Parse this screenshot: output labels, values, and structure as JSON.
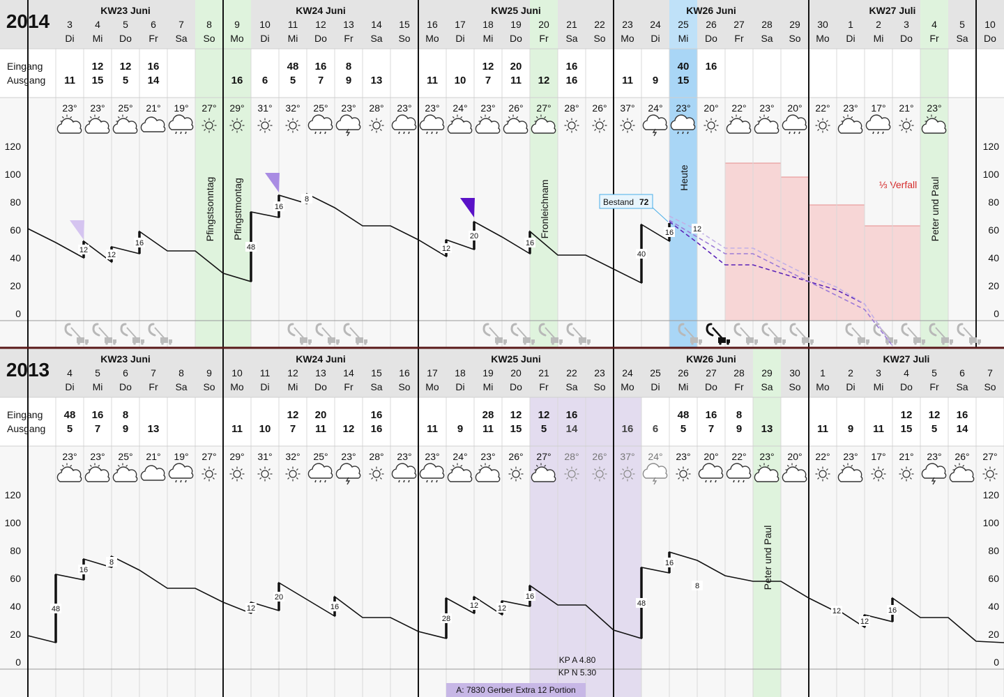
{
  "colors": {
    "header_bg": "#e4e4e4",
    "holiday": "#dff3dd",
    "today": "#a9d6f6",
    "promo": "#e3dcef",
    "verfall": "#f6cdcd",
    "line": "#111111",
    "forecast": "#5a22b8",
    "divider": "#5a1a1a"
  },
  "panels": [
    {
      "id": "y2014",
      "year": "2014",
      "labels": {
        "in": "Eingang",
        "out": "Ausgang"
      },
      "weeks": [
        {
          "label": "KW23 Juni",
          "from": 0,
          "to": 7
        },
        {
          "label": "KW24 Juni",
          "from": 7,
          "to": 14
        },
        {
          "label": "KW25 Juni",
          "from": 14,
          "to": 21
        },
        {
          "label": "KW26 Juni",
          "from": 21,
          "to": 28
        },
        {
          "label": "KW27 Juli",
          "from": 28,
          "to": 34
        }
      ],
      "days": [
        {
          "n": "3",
          "d": "Di",
          "in": "",
          "out": "11",
          "t": "23°",
          "w": "pcloud"
        },
        {
          "n": "4",
          "d": "Mi",
          "in": "12",
          "out": "15",
          "t": "23°",
          "w": "pcloud"
        },
        {
          "n": "5",
          "d": "Do",
          "in": "12",
          "out": "5",
          "t": "25°",
          "w": "pcloud"
        },
        {
          "n": "6",
          "d": "Fr",
          "in": "16",
          "out": "14",
          "t": "21°",
          "w": "cloud"
        },
        {
          "n": "7",
          "d": "Sa",
          "in": "",
          "out": "",
          "t": "19°",
          "w": "rain"
        },
        {
          "n": "8",
          "d": "So",
          "in": "",
          "out": "",
          "t": "27°",
          "w": "sun"
        },
        {
          "n": "9",
          "d": "Mo",
          "in": "",
          "out": "16",
          "t": "29°",
          "w": "sun"
        },
        {
          "n": "10",
          "d": "Di",
          "in": "",
          "out": "6",
          "t": "31°",
          "w": "sun"
        },
        {
          "n": "11",
          "d": "Mi",
          "in": "48",
          "out": "5",
          "t": "32°",
          "w": "sun"
        },
        {
          "n": "12",
          "d": "Do",
          "in": "16",
          "out": "7",
          "t": "25°",
          "w": "rain"
        },
        {
          "n": "13",
          "d": "Fr",
          "in": "8",
          "out": "9",
          "t": "23°",
          "w": "storm"
        },
        {
          "n": "14",
          "d": "Sa",
          "in": "",
          "out": "13",
          "t": "28°",
          "w": "sun"
        },
        {
          "n": "15",
          "d": "So",
          "in": "",
          "out": "",
          "t": "23°",
          "w": "rain"
        },
        {
          "n": "16",
          "d": "Mo",
          "in": "",
          "out": "11",
          "t": "23°",
          "w": "rain"
        },
        {
          "n": "17",
          "d": "Di",
          "in": "",
          "out": "10",
          "t": "24°",
          "w": "pcloud"
        },
        {
          "n": "18",
          "d": "Mi",
          "in": "12",
          "out": "7",
          "t": "23°",
          "w": "pcloud"
        },
        {
          "n": "19",
          "d": "Do",
          "in": "20",
          "out": "11",
          "t": "26°",
          "w": "pcloud"
        },
        {
          "n": "20",
          "d": "Fr",
          "in": "",
          "out": "12",
          "t": "27°",
          "w": "pcloud"
        },
        {
          "n": "21",
          "d": "Sa",
          "in": "16",
          "out": "16",
          "t": "28°",
          "w": "sun"
        },
        {
          "n": "22",
          "d": "So",
          "in": "",
          "out": "",
          "t": "26°",
          "w": "sun"
        },
        {
          "n": "23",
          "d": "Mo",
          "in": "",
          "out": "11",
          "t": "37°",
          "w": "sun"
        },
        {
          "n": "24",
          "d": "Di",
          "in": "",
          "out": "9",
          "t": "24°",
          "w": "storm"
        },
        {
          "n": "25",
          "d": "Mi",
          "in": "40",
          "out": "15",
          "t": "23°",
          "w": "rain"
        },
        {
          "n": "26",
          "d": "Do",
          "in": "16",
          "out": "",
          "t": "20°",
          "w": "sun"
        },
        {
          "n": "27",
          "d": "Fr",
          "in": "",
          "out": "",
          "t": "22°",
          "w": "pcloud"
        },
        {
          "n": "28",
          "d": "Sa",
          "in": "",
          "out": "",
          "t": "23°",
          "w": "pcloud"
        },
        {
          "n": "29",
          "d": "So",
          "in": "",
          "out": "",
          "t": "20°",
          "w": "rain"
        },
        {
          "n": "30",
          "d": "Mo",
          "in": "",
          "out": "",
          "t": "22°",
          "w": "sun"
        },
        {
          "n": "1",
          "d": "Di",
          "in": "",
          "out": "",
          "t": "23°",
          "w": "pcloud"
        },
        {
          "n": "2",
          "d": "Mi",
          "in": "",
          "out": "",
          "t": "17°",
          "w": "rain"
        },
        {
          "n": "3",
          "d": "Do",
          "in": "",
          "out": "",
          "t": "21°",
          "w": "sun"
        },
        {
          "n": "4",
          "d": "Fr",
          "in": "",
          "out": "",
          "t": "23°",
          "w": "pcloud"
        },
        {
          "n": "5",
          "d": "Sa",
          "in": "",
          "out": "",
          "t": "",
          "w": ""
        },
        {
          "n": "10",
          "d": "Do",
          "in": "",
          "out": "",
          "t": "",
          "w": ""
        }
      ],
      "holidays": [
        {
          "col": 6,
          "label": "Pfingstsonntag"
        },
        {
          "col": 7,
          "label": "Pfingstmontag"
        },
        {
          "col": 18,
          "label": "Fronleichnam"
        },
        {
          "col": 32,
          "label": "Peter und Paul"
        }
      ],
      "today": {
        "col": 23,
        "label": "Heute"
      },
      "bestand": {
        "label": "Bestand",
        "value": "72"
      },
      "verfall_label": "⅓ Verfall",
      "chart_data": {
        "type": "line",
        "ylim": [
          0,
          120
        ],
        "yticks": [
          0,
          20,
          40,
          60,
          80,
          100,
          120
        ],
        "x": [
          0,
          1,
          2,
          2,
          3,
          3,
          4,
          4,
          5,
          6,
          7,
          8,
          8,
          9,
          9,
          10,
          10,
          11,
          12,
          13,
          14,
          15,
          15,
          16,
          16,
          17,
          18,
          18,
          19,
          20,
          21,
          22,
          22,
          23,
          23
        ],
        "values": [
          66,
          56,
          45,
          57,
          42,
          53,
          48,
          64,
          50,
          50,
          34,
          28,
          78,
          74,
          90,
          84,
          91,
          81,
          68,
          68,
          58,
          46,
          58,
          51,
          71,
          60,
          48,
          64,
          47,
          47,
          37,
          27,
          69,
          57,
          70
        ],
        "inflow_labels": [
          {
            "x": 2,
            "label": "12"
          },
          {
            "x": 3,
            "label": "12"
          },
          {
            "x": 4,
            "label": "16"
          },
          {
            "x": 8,
            "label": "48"
          },
          {
            "x": 9,
            "label": "16"
          },
          {
            "x": 10,
            "label": "8"
          },
          {
            "x": 15,
            "label": "12"
          },
          {
            "x": 16,
            "label": "20"
          },
          {
            "x": 18,
            "label": "16"
          },
          {
            "x": 22,
            "label": "40"
          },
          {
            "x": 23,
            "label": "16"
          },
          {
            "x": 24,
            "label": "12"
          }
        ],
        "forecast": [
          {
            "x": [
              23,
              24,
              25,
              26,
              27,
              28,
              29,
              30
            ],
            "values": [
              71,
              56,
              40,
              40,
              34,
              28,
              22,
              12
            ],
            "color": "#5a22b8"
          },
          {
            "x": [
              23,
              24,
              25,
              26,
              27,
              28,
              29,
              30,
              31
            ],
            "values": [
              72,
              60,
              48,
              48,
              38,
              28,
              18,
              8,
              -18
            ],
            "color": "#9c7ad6"
          },
          {
            "x": [
              23,
              24,
              25,
              26,
              27,
              28,
              29,
              30,
              31
            ],
            "values": [
              75,
              65,
              52,
              52,
              42,
              32,
              24,
              12,
              -18
            ],
            "color": "#c2b0e6"
          }
        ],
        "verfall_steps": [
          {
            "from": 25,
            "to": 27,
            "value": 113
          },
          {
            "from": 27,
            "to": 28,
            "value": 103
          },
          {
            "from": 28,
            "to": 30,
            "value": 83
          },
          {
            "from": 30,
            "to": 32,
            "value": 68
          }
        ],
        "markers": [
          {
            "x": 2,
            "value": 57,
            "color": "#d5c4f0"
          },
          {
            "x": 9,
            "value": 91,
            "color": "#a98ce3"
          },
          {
            "x": 16,
            "value": 73,
            "color": "#5a12c7"
          }
        ]
      }
    },
    {
      "id": "y2013",
      "year": "2013",
      "labels": {
        "in": "Eingang",
        "out": "Ausgang"
      },
      "weeks": [
        {
          "label": "KW23 Juni",
          "from": 0,
          "to": 7
        },
        {
          "label": "KW24 Juni",
          "from": 7,
          "to": 14
        },
        {
          "label": "KW25 Juni",
          "from": 14,
          "to": 21
        },
        {
          "label": "KW26 Juni",
          "from": 21,
          "to": 28
        },
        {
          "label": "KW27 Juli",
          "from": 28,
          "to": 35
        }
      ],
      "days": [
        {
          "n": "4",
          "d": "Di",
          "in": "48",
          "out": "5",
          "t": "23°",
          "w": "pcloud"
        },
        {
          "n": "5",
          "d": "Mi",
          "in": "16",
          "out": "7",
          "t": "23°",
          "w": "pcloud"
        },
        {
          "n": "6",
          "d": "Do",
          "in": "8",
          "out": "9",
          "t": "25°",
          "w": "pcloud"
        },
        {
          "n": "7",
          "d": "Fr",
          "in": "",
          "out": "13",
          "t": "21°",
          "w": "cloud"
        },
        {
          "n": "8",
          "d": "Sa",
          "in": "",
          "out": "",
          "t": "19°",
          "w": "rain"
        },
        {
          "n": "9",
          "d": "So",
          "in": "",
          "out": "",
          "t": "27°",
          "w": "sun"
        },
        {
          "n": "10",
          "d": "Mo",
          "in": "",
          "out": "11",
          "t": "29°",
          "w": "sun"
        },
        {
          "n": "11",
          "d": "Di",
          "in": "",
          "out": "10",
          "t": "31°",
          "w": "sun"
        },
        {
          "n": "12",
          "d": "Mi",
          "in": "12",
          "out": "7",
          "t": "32°",
          "w": "sun"
        },
        {
          "n": "13",
          "d": "Do",
          "in": "20",
          "out": "11",
          "t": "25°",
          "w": "rain"
        },
        {
          "n": "14",
          "d": "Fr",
          "in": "",
          "out": "12",
          "t": "23°",
          "w": "storm"
        },
        {
          "n": "15",
          "d": "Sa",
          "in": "16",
          "out": "16",
          "t": "28°",
          "w": "sun"
        },
        {
          "n": "16",
          "d": "So",
          "in": "",
          "out": "",
          "t": "23°",
          "w": "rain"
        },
        {
          "n": "17",
          "d": "Mo",
          "in": "",
          "out": "11",
          "t": "23°",
          "w": "rain"
        },
        {
          "n": "18",
          "d": "Di",
          "in": "",
          "out": "9",
          "t": "24°",
          "w": "pcloud"
        },
        {
          "n": "19",
          "d": "Mi",
          "in": "28",
          "out": "11",
          "t": "23°",
          "w": "pcloud"
        },
        {
          "n": "20",
          "d": "Do",
          "in": "12",
          "out": "15",
          "t": "26°",
          "w": "sun"
        },
        {
          "n": "21",
          "d": "Fr",
          "in": "12",
          "out": "5",
          "t": "27°",
          "w": "pcloud"
        },
        {
          "n": "22",
          "d": "Sa",
          "in": "16",
          "out": "14",
          "t": "28°",
          "w": "sun"
        },
        {
          "n": "23",
          "d": "So",
          "in": "",
          "out": "",
          "t": "26°",
          "w": "sun"
        },
        {
          "n": "24",
          "d": "Mo",
          "in": "",
          "out": "16",
          "t": "37°",
          "w": "sun"
        },
        {
          "n": "25",
          "d": "Di",
          "in": "",
          "out": "6",
          "t": "24°",
          "w": "storm"
        },
        {
          "n": "26",
          "d": "Mi",
          "in": "48",
          "out": "5",
          "t": "23°",
          "w": "sun"
        },
        {
          "n": "27",
          "d": "Do",
          "in": "16",
          "out": "7",
          "t": "20°",
          "w": "rain"
        },
        {
          "n": "28",
          "d": "Fr",
          "in": "8",
          "out": "9",
          "t": "22°",
          "w": "rain"
        },
        {
          "n": "29",
          "d": "Sa",
          "in": "",
          "out": "13",
          "t": "23°",
          "w": "pcloud"
        },
        {
          "n": "30",
          "d": "So",
          "in": "",
          "out": "",
          "t": "20°",
          "w": "pcloud"
        },
        {
          "n": "1",
          "d": "Mo",
          "in": "",
          "out": "11",
          "t": "22°",
          "w": "sun"
        },
        {
          "n": "2",
          "d": "Di",
          "in": "",
          "out": "9",
          "t": "23°",
          "w": "pcloud"
        },
        {
          "n": "3",
          "d": "Mi",
          "in": "",
          "out": "11",
          "t": "17°",
          "w": "sun"
        },
        {
          "n": "4",
          "d": "Do",
          "in": "12",
          "out": "15",
          "t": "21°",
          "w": "sun"
        },
        {
          "n": "5",
          "d": "Fr",
          "in": "12",
          "out": "5",
          "t": "23°",
          "w": "storm"
        },
        {
          "n": "6",
          "d": "Sa",
          "in": "16",
          "out": "14",
          "t": "26°",
          "w": "pcloud"
        },
        {
          "n": "7",
          "d": "So",
          "in": "",
          "out": "",
          "t": "27°",
          "w": "sun"
        },
        {
          "n": "",
          "d": "",
          "in": "",
          "out": "16",
          "t": "28°",
          "w": "sun"
        }
      ],
      "holidays": [
        {
          "col": 26,
          "label": "Peter und Paul"
        }
      ],
      "promo": {
        "from": 18,
        "to": 22,
        "label": "A: 7830 Gerber Extra 12 Portion",
        "kp_a": "KP A 4.80",
        "kp_n": "KP N 5.30"
      },
      "chart_data": {
        "type": "line",
        "ylim": [
          0,
          120
        ],
        "yticks": [
          0,
          20,
          40,
          60,
          80,
          100,
          120
        ],
        "x": [
          0,
          1,
          1,
          2,
          2,
          3,
          3,
          4,
          5,
          6,
          7,
          8,
          8,
          9,
          9,
          10,
          11,
          11,
          12,
          13,
          14,
          15,
          15,
          16,
          16,
          17,
          17,
          18,
          18,
          19,
          20,
          21,
          22,
          22,
          23,
          23,
          24,
          25,
          26,
          27,
          28,
          29,
          29,
          30,
          30,
          31,
          31,
          32,
          33,
          34,
          35
        ],
        "values": [
          24,
          19,
          68,
          64,
          79,
          73,
          81,
          71,
          58,
          58,
          48,
          40,
          48,
          42,
          62,
          50,
          38,
          52,
          37,
          37,
          27,
          22,
          51,
          40,
          52,
          39,
          49,
          45,
          60,
          46,
          46,
          28,
          22,
          73,
          69,
          84,
          78,
          67,
          63,
          63,
          51,
          41,
          43,
          30,
          39,
          34,
          51,
          37,
          37,
          20,
          19
        ],
        "inflow_labels": [
          {
            "x": 1,
            "label": "48"
          },
          {
            "x": 2,
            "label": "16"
          },
          {
            "x": 3,
            "label": "8"
          },
          {
            "x": 8,
            "label": "12"
          },
          {
            "x": 9,
            "label": "20"
          },
          {
            "x": 11,
            "label": "16"
          },
          {
            "x": 15,
            "label": "28"
          },
          {
            "x": 16,
            "label": "12"
          },
          {
            "x": 17,
            "label": "12"
          },
          {
            "x": 18,
            "label": "16"
          },
          {
            "x": 22,
            "label": "48"
          },
          {
            "x": 23,
            "label": "16"
          },
          {
            "x": 24,
            "label": "8"
          },
          {
            "x": 29,
            "label": "12"
          },
          {
            "x": 30,
            "label": "12"
          },
          {
            "x": 31,
            "label": "16"
          }
        ]
      }
    }
  ]
}
